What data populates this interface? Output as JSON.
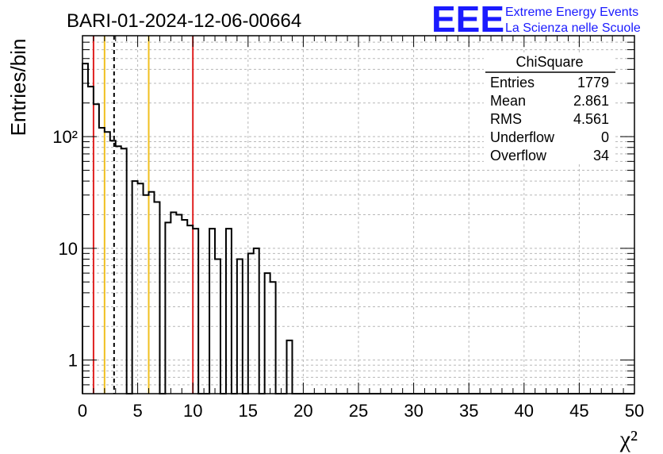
{
  "chart_data": {
    "type": "histogram",
    "title": "BARI-01-2024-12-06-00664",
    "xlabel": "χ²",
    "ylabel": "Entries/bin",
    "xlim": [
      0,
      50
    ],
    "ylim": [
      0.5,
      800
    ],
    "yscale": "log",
    "grid": true,
    "x_ticks": [
      "0",
      "5",
      "10",
      "15",
      "20",
      "25",
      "30",
      "35",
      "40",
      "45",
      "50"
    ],
    "y_ticks": [
      {
        "value": 1,
        "label": "1"
      },
      {
        "value": 10,
        "label": "10"
      },
      {
        "value": 100,
        "label": "10²"
      }
    ],
    "bin_width": 0.5,
    "bin_values": [
      450,
      280,
      195,
      120,
      110,
      92,
      82,
      78,
      0,
      40,
      38,
      30,
      32,
      26,
      0,
      17,
      21,
      20,
      18,
      16,
      15,
      0,
      0,
      15,
      8,
      0,
      15,
      0,
      8,
      0,
      9,
      10,
      0,
      6,
      5,
      0,
      0,
      1.5,
      0,
      0,
      0,
      0,
      0,
      0,
      0,
      0,
      0,
      0,
      0,
      0,
      0,
      0,
      0,
      0,
      0,
      0,
      0,
      0,
      0,
      0,
      0,
      0,
      0,
      0,
      0,
      0,
      0,
      0,
      0,
      0,
      0,
      0,
      0,
      0,
      0,
      0,
      0,
      0,
      0,
      0,
      0,
      0,
      0,
      0,
      0,
      0,
      0,
      0,
      0,
      0,
      0,
      0,
      0,
      0,
      0,
      0,
      0,
      0,
      0,
      0
    ],
    "vertical_lines": [
      {
        "x": 1,
        "color": "#e02020",
        "style": "solid"
      },
      {
        "x": 2,
        "color": "#f0c020",
        "style": "solid"
      },
      {
        "x": 2.861,
        "color": "#000000",
        "style": "dashed"
      },
      {
        "x": 6,
        "color": "#f0c020",
        "style": "solid"
      },
      {
        "x": 10,
        "color": "#e02020",
        "style": "solid"
      }
    ],
    "stats": {
      "title": "ChiSquare",
      "rows": [
        {
          "label": "Entries",
          "value": "1779"
        },
        {
          "label": "Mean",
          "value": "2.861"
        },
        {
          "label": "RMS",
          "value": "4.561"
        },
        {
          "label": "Underflow",
          "value": "0"
        },
        {
          "label": "Overflow",
          "value": "34"
        }
      ]
    }
  },
  "logo": {
    "text": "EEE",
    "line1": "Extreme Energy Events",
    "line2": "La Scienza nelle Scuole",
    "color": "#1a1aff"
  }
}
